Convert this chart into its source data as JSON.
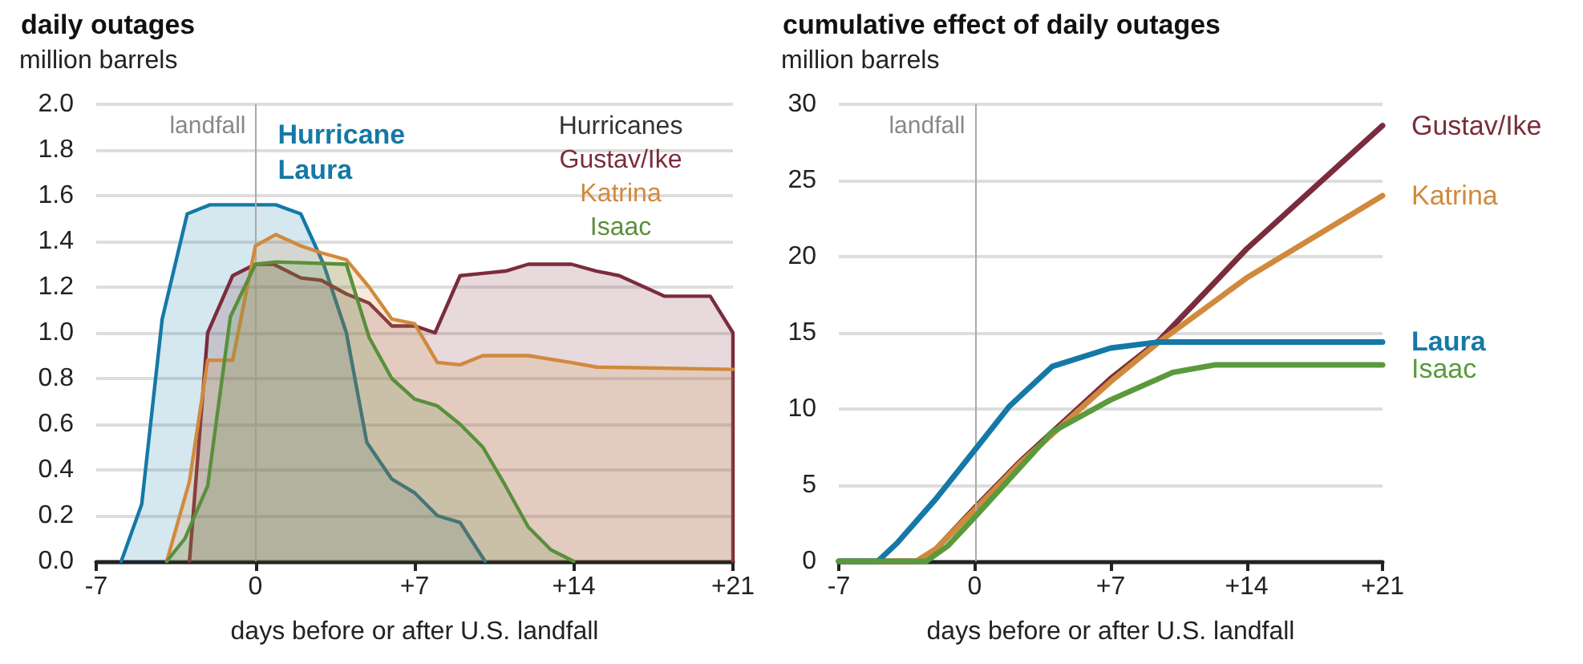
{
  "chart_data": [
    {
      "type": "area",
      "title": "daily outages",
      "ylabel": "million barrels",
      "xlabel": "days before or after U.S. landfall",
      "legend_title": "Hurricanes",
      "legend": "top right",
      "grid": "y",
      "xlim": [
        -7,
        21
      ],
      "xticks": [
        -7,
        {
          "value": 0,
          "label": "0"
        },
        {
          "value": 7,
          "label": "+7"
        },
        {
          "value": 14,
          "label": "+14"
        },
        {
          "value": 21,
          "label": "+21"
        }
      ],
      "ylim": [
        0,
        2
      ],
      "yticks": [
        {
          "value": 0,
          "label": "0.0"
        },
        {
          "value": 0.2,
          "label": "0.2"
        },
        {
          "value": 0.4,
          "label": "0.4"
        },
        {
          "value": 0.6,
          "label": "0.6"
        },
        {
          "value": 0.8,
          "label": "0.8"
        },
        {
          "value": 1,
          "label": "1.0"
        },
        {
          "value": 1.2,
          "label": "1.2"
        },
        {
          "value": 1.4,
          "label": "1.4"
        },
        {
          "value": 1.6,
          "label": "1.6"
        },
        {
          "value": 1.8,
          "label": "1.8"
        },
        {
          "value": 2,
          "label": "2.0"
        }
      ],
      "ref_lines": [
        {
          "axis": "x",
          "value": 0,
          "label": "landfall",
          "color": "#aaaaaa"
        }
      ],
      "series": [
        {
          "name": "Hurricane Laura",
          "color": "#1479a6",
          "x": [
            -5.9,
            -5,
            -4.1,
            -3,
            -2,
            0,
            0.9,
            2,
            3,
            4,
            4.9,
            6,
            7,
            8,
            9,
            10.1
          ],
          "values": [
            0,
            0.25,
            1.06,
            1.52,
            1.56,
            1.56,
            1.56,
            1.52,
            1.3,
            1.0,
            0.52,
            0.36,
            0.3,
            0.2,
            0.17,
            0
          ]
        },
        {
          "name": "Gustav/Ike",
          "color": "#7b2c3c",
          "x": [
            -2.9,
            -2.1,
            -1,
            0,
            0.8,
            2,
            2.9,
            4,
            5,
            6,
            7,
            7.9,
            9,
            10,
            11,
            12,
            13.9,
            15,
            16,
            18,
            20,
            21,
            21
          ],
          "values": [
            0,
            1.0,
            1.25,
            1.3,
            1.3,
            1.24,
            1.23,
            1.17,
            1.13,
            1.03,
            1.03,
            1.0,
            1.25,
            1.26,
            1.27,
            1.3,
            1.3,
            1.27,
            1.25,
            1.16,
            1.16,
            1.0,
            0
          ]
        },
        {
          "name": "Katrina",
          "color": "#d08a3c",
          "x": [
            -3.9,
            -2.9,
            -2.1,
            -1,
            0,
            0.9,
            2,
            2.9,
            4,
            5,
            6,
            7,
            8,
            9,
            10,
            12,
            13.9,
            15,
            21
          ],
          "values": [
            0,
            0.35,
            0.88,
            0.88,
            1.38,
            1.43,
            1.38,
            1.35,
            1.32,
            1.2,
            1.06,
            1.04,
            0.87,
            0.86,
            0.9,
            0.9,
            0.87,
            0.85,
            0.84
          ]
        },
        {
          "name": "Isaac",
          "color": "#5a8f3c",
          "x": [
            -3.9,
            -3.1,
            -2.1,
            -1.1,
            0,
            0.9,
            4,
            5,
            6,
            7,
            8,
            9,
            10,
            11,
            12,
            13,
            14
          ],
          "values": [
            0,
            0.1,
            0.33,
            1.07,
            1.3,
            1.31,
            1.3,
            0.98,
            0.8,
            0.71,
            0.68,
            0.6,
            0.5,
            0.33,
            0.15,
            0.05,
            0
          ]
        }
      ]
    },
    {
      "type": "line",
      "title": "cumulative effect of daily outages",
      "ylabel": "million barrels",
      "xlabel": "days before or after U.S. landfall",
      "grid": "y",
      "xlim": [
        -7,
        21
      ],
      "xticks": [
        -7,
        {
          "value": 0,
          "label": "0"
        },
        {
          "value": 7,
          "label": "+7"
        },
        {
          "value": 14,
          "label": "+14"
        },
        {
          "value": 21,
          "label": "+21"
        }
      ],
      "ylim": [
        0,
        30
      ],
      "yticks": [
        0,
        5,
        10,
        15,
        20,
        25,
        30
      ],
      "ref_lines": [
        {
          "axis": "x",
          "value": 0,
          "label": "landfall",
          "color": "#aaaaaa"
        }
      ],
      "series": [
        {
          "name": "Gustav/Ike",
          "color": "#7b2c3c",
          "x": [
            -7,
            -3,
            -2,
            0,
            2.3,
            7,
            9.5,
            14,
            21
          ],
          "values": [
            0,
            0,
            0.8,
            3.5,
            6.5,
            12,
            14.5,
            20.5,
            28.6
          ]
        },
        {
          "name": "Katrina",
          "color": "#d08a3c",
          "x": [
            -7,
            -3,
            -2,
            0,
            2.3,
            7,
            9.5,
            14,
            21
          ],
          "values": [
            0,
            0,
            0.8,
            3.4,
            6.4,
            11.8,
            14.4,
            18.6,
            24
          ]
        },
        {
          "name": "Laura",
          "color": "#1479a6",
          "x": [
            -7,
            -5,
            -4,
            -2,
            0,
            1.8,
            4,
            7,
            9.5,
            21
          ],
          "values": [
            0,
            0,
            1.2,
            4.1,
            7.3,
            10.2,
            12.8,
            14,
            14.4,
            14.4
          ]
        },
        {
          "name": "Isaac",
          "color": "#5a9a3c",
          "x": [
            -7,
            -2.5,
            -1.4,
            0,
            4,
            7,
            10.2,
            12.4,
            21
          ],
          "values": [
            0,
            0,
            1,
            2.9,
            8.5,
            10.6,
            12.4,
            12.9,
            12.9
          ]
        }
      ]
    }
  ]
}
